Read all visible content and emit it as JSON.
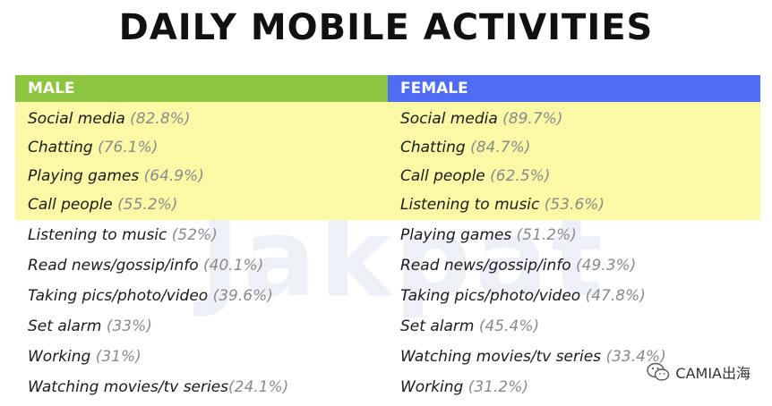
{
  "title": "DAILY MOBILE ACTIVITIES",
  "watermark_text": "Jakpat",
  "headers": {
    "male": "MALE",
    "female": "FEMALE"
  },
  "highlighted_rows": [
    {
      "male_label": "Social media",
      "male_pct": "(82.8%)",
      "female_label": "Social media",
      "female_pct": "(89.7%)"
    },
    {
      "male_label": "Chatting",
      "male_pct": "(76.1%)",
      "female_label": "Chatting",
      "female_pct": "(84.7%)"
    },
    {
      "male_label": "Playing games",
      "male_pct": "(64.9%)",
      "female_label": "Call people",
      "female_pct": "(62.5%)"
    },
    {
      "male_label": "Call people",
      "male_pct": "(55.2%)",
      "female_label": "Listening to music",
      "female_pct": "(53.6%)"
    }
  ],
  "plain_rows": [
    {
      "male_label": "Listening to music",
      "male_pct": "(52%)",
      "female_label": "Playing games",
      "female_pct": "(51.2%)"
    },
    {
      "male_label": "Read news/gossip/info ",
      "male_pct": "(40.1%)",
      "female_label": "Read news/gossip/info ",
      "female_pct": "(49.3%)"
    },
    {
      "male_label": "Taking pics/photo/video",
      "male_pct": "(39.6%)",
      "female_label": "Taking pics/photo/video",
      "female_pct": "(47.8%)"
    },
    {
      "male_label": "Set alarm",
      "male_pct": "(33%)",
      "female_label": "Set alarm",
      "female_pct": "(45.4%)"
    },
    {
      "male_label": "Working",
      "male_pct": "(31%)",
      "female_label": "Watching movies/tv series",
      "female_pct": "(33.4%)"
    },
    {
      "male_label": "Watching movies/tv series",
      "male_pct": "(24.1%)",
      "female_label": "Working",
      "female_pct": "(31.2%)"
    }
  ],
  "source_watermark": {
    "text": "CAMIA出海",
    "icon": "wechat-icon"
  },
  "colors": {
    "male": "#8cc63f",
    "female": "#4f6cf5",
    "highlight": "#fbf9a6"
  }
}
